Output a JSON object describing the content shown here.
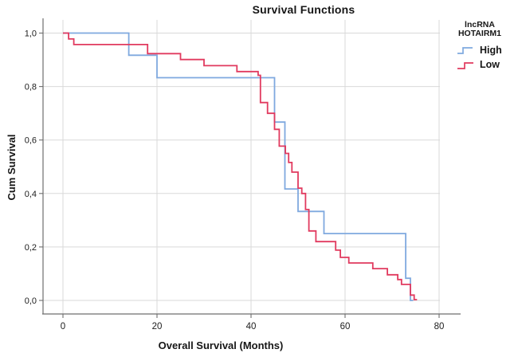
{
  "title": "Survival Functions",
  "x_axis": {
    "label": "Overall Survival (Months)",
    "tick_labels": [
      "0",
      "20",
      "40",
      "60",
      "80"
    ],
    "tick_values": [
      0,
      20,
      40,
      60,
      80
    ]
  },
  "y_axis": {
    "label": "Cum Survival",
    "tick_labels": [
      "1,0",
      "0,8",
      "0,6",
      "0,4",
      "0,2",
      "0,0"
    ],
    "tick_values": [
      1.0,
      0.8,
      0.6,
      0.4,
      0.2,
      0.0
    ]
  },
  "legend": {
    "title_line1": "lncRNA",
    "title_line2": "HOTAIRM1",
    "items": [
      {
        "label": "High",
        "color": "#7FA9DF"
      },
      {
        "label": "Low",
        "color": "#E13A5F"
      }
    ]
  },
  "colors": {
    "high": "#7FA9DF",
    "low": "#E13A5F",
    "grid": "#D9D9D9",
    "axis": "#6E6E6E",
    "text": "#1C1C1C",
    "background": "#FFFFFF"
  },
  "chart_data": {
    "type": "line",
    "subtype": "kaplan-meier-step",
    "title": "Survival Functions",
    "xlabel": "Overall Survival (Months)",
    "ylabel": "Cum Survival",
    "xlim": [
      0,
      80
    ],
    "ylim": [
      0.0,
      1.0
    ],
    "grid": true,
    "legend_position": "right",
    "legend_title": "lncRNA HOTAIRM1",
    "series": [
      {
        "name": "High",
        "color": "#7FA9DF",
        "steps": [
          [
            0,
            1.0
          ],
          [
            14,
            0.917
          ],
          [
            20,
            0.833
          ],
          [
            45,
            0.667
          ],
          [
            47.2,
            0.417
          ],
          [
            50,
            0.333
          ],
          [
            55.5,
            0.25
          ],
          [
            72.9,
            0.083
          ],
          [
            73.9,
            0.0
          ]
        ],
        "end_month": 74.5
      },
      {
        "name": "Low",
        "color": "#E13A5F",
        "steps": [
          [
            0,
            1.0
          ],
          [
            1.2,
            0.978
          ],
          [
            2.3,
            0.957
          ],
          [
            18,
            0.923
          ],
          [
            25,
            0.901
          ],
          [
            30,
            0.878
          ],
          [
            37,
            0.856
          ],
          [
            41.5,
            0.842
          ],
          [
            42,
            0.74
          ],
          [
            43.5,
            0.7
          ],
          [
            45,
            0.64
          ],
          [
            46,
            0.577
          ],
          [
            47.3,
            0.55
          ],
          [
            48,
            0.516
          ],
          [
            48.7,
            0.48
          ],
          [
            50,
            0.42
          ],
          [
            50.8,
            0.4
          ],
          [
            51.6,
            0.34
          ],
          [
            52.3,
            0.26
          ],
          [
            53.8,
            0.22
          ],
          [
            58,
            0.188
          ],
          [
            59,
            0.161
          ],
          [
            60.8,
            0.14
          ],
          [
            65.9,
            0.119
          ],
          [
            69,
            0.096
          ],
          [
            71.2,
            0.078
          ],
          [
            72,
            0.06
          ],
          [
            73.9,
            0.02
          ],
          [
            74.7,
            0.003
          ]
        ],
        "end_month": 75.3
      }
    ]
  }
}
